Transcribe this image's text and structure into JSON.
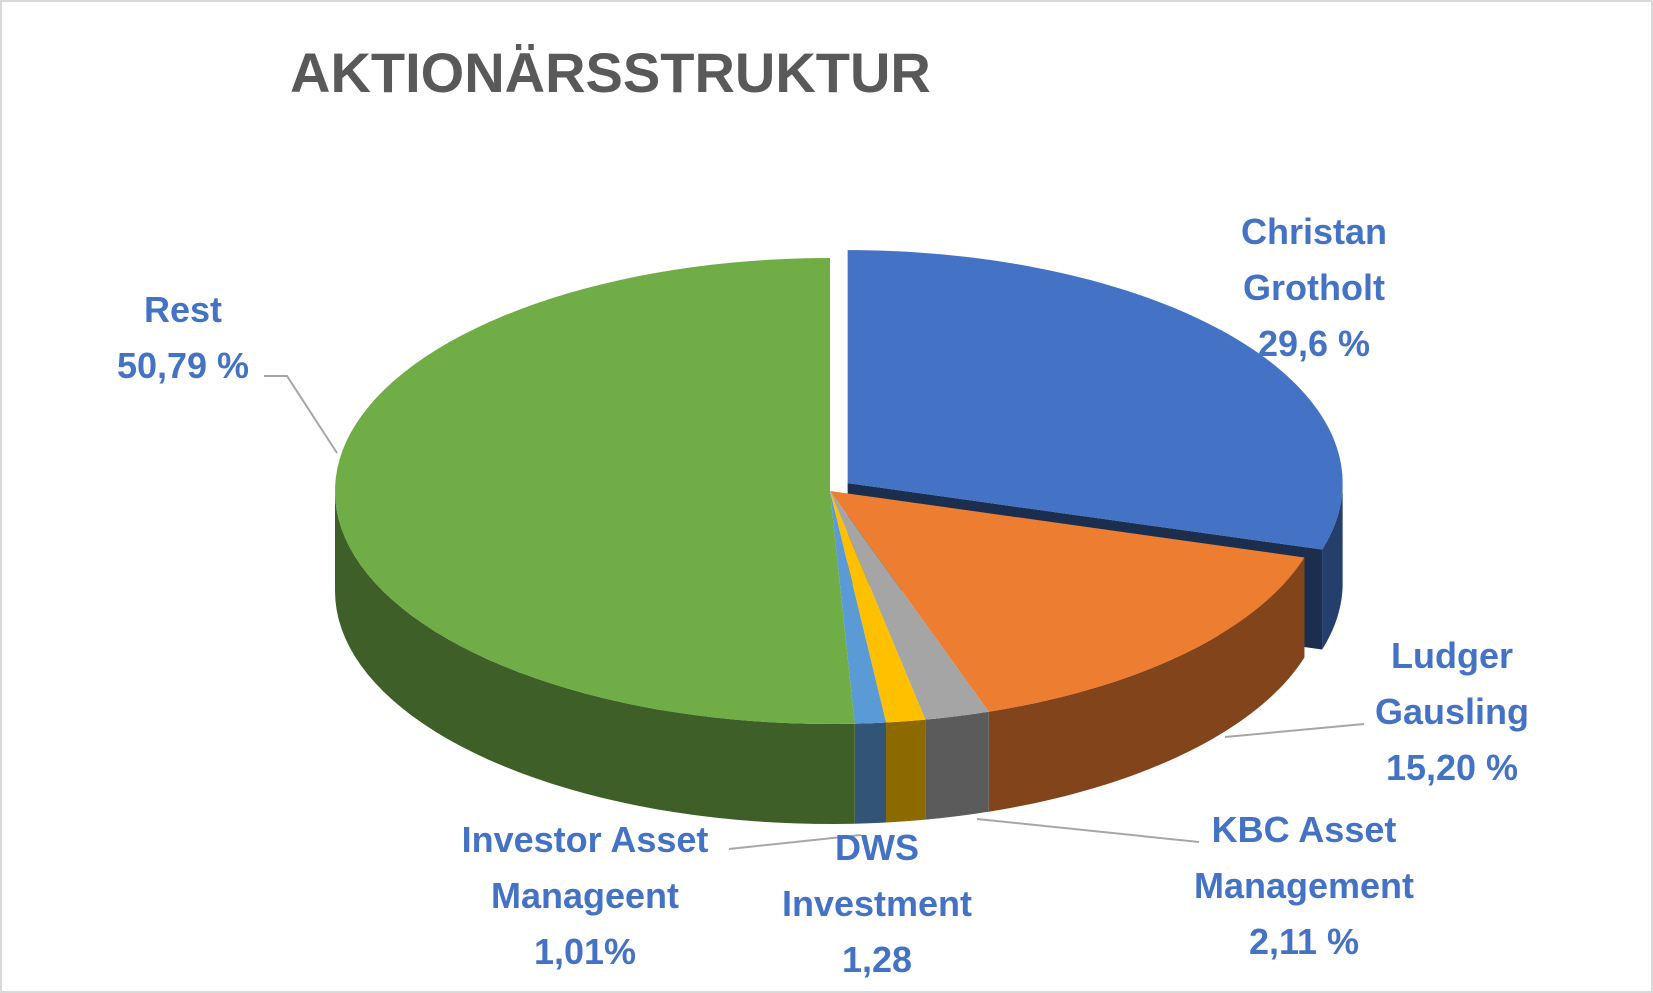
{
  "chart_data": {
    "type": "pie",
    "title": "AKTIONÄRSSTRUKTUR",
    "categories": [
      "Christan Grotholt",
      "Ludger Gausling",
      "KBC Asset Management",
      "DWS Investment",
      "Investor Asset Manageent",
      "Rest"
    ],
    "values": [
      29.6,
      15.2,
      2.11,
      1.28,
      1.01,
      50.79
    ],
    "value_labels": [
      "29,6 %",
      "15,20 %",
      "2,11 %",
      "1,28",
      "1,01%",
      "50,79 %"
    ],
    "colors": [
      "#4472c4",
      "#ed7d31",
      "#a5a5a5",
      "#ffc000",
      "#5b9bd5",
      "#70ad47"
    ]
  }
}
